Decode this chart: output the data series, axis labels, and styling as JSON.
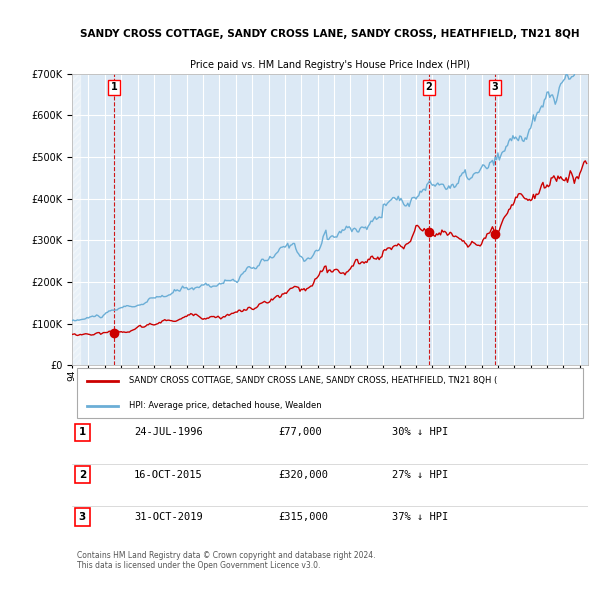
{
  "title": "SANDY CROSS COTTAGE, SANDY CROSS LANE, SANDY CROSS, HEATHFIELD, TN21 8QH",
  "subtitle": "Price paid vs. HM Land Registry's House Price Index (HPI)",
  "hpi_label": "HPI: Average price, detached house, Wealden",
  "property_label": "SANDY CROSS COTTAGE, SANDY CROSS LANE, SANDY CROSS, HEATHFIELD, TN21 8QH (",
  "legend_text": "Contains HM Land Registry data © Crown copyright and database right 2024.\nThis data is licensed under the Open Government Licence v3.0.",
  "transactions": [
    {
      "num": 1,
      "date": "24-JUL-1996",
      "price": 77000,
      "pct": "30%",
      "year": 1996.56
    },
    {
      "num": 2,
      "date": "16-OCT-2015",
      "price": 320000,
      "pct": "27%",
      "year": 2015.79
    },
    {
      "num": 3,
      "date": "31-OCT-2019",
      "price": 315000,
      "pct": "37%",
      "year": 2019.83
    }
  ],
  "hpi_color": "#6baed6",
  "price_color": "#cc0000",
  "background_color": "#dce9f5",
  "plot_bg": "#dce9f5",
  "grid_color": "#ffffff",
  "dashed_line_color": "#cc0000",
  "ylim": [
    0,
    700000
  ],
  "xlim_start": 1994.0,
  "xlim_end": 2025.5
}
